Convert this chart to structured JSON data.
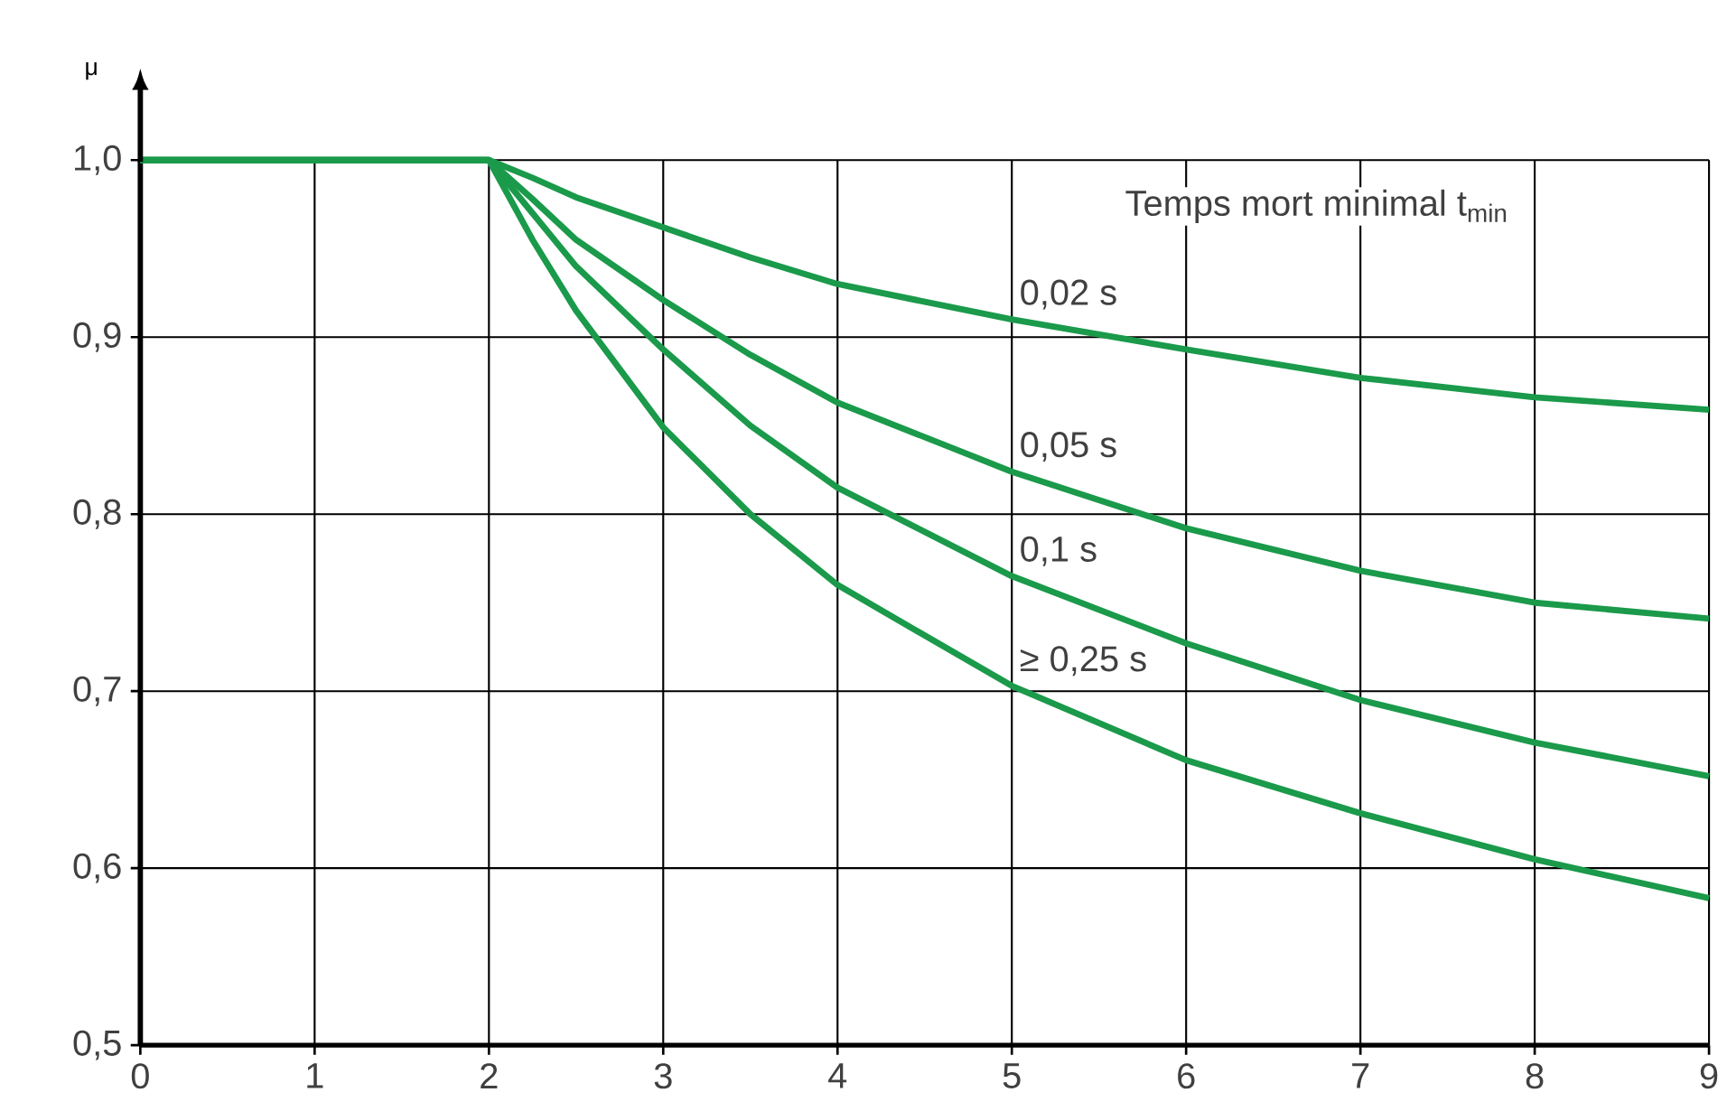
{
  "chart_data": {
    "type": "line",
    "ylabel": "μ",
    "annotations": [
      "Temps mort minimal t$_{min}$"
    ],
    "x": [
      0,
      2,
      2.25,
      2.5,
      3,
      3.5,
      4,
      5,
      6,
      7,
      8,
      9
    ],
    "series": [
      {
        "name": "0,02 s",
        "color": "#1a9a4a",
        "values": [
          1.0,
          1.0,
          0.99,
          0.979,
          0.962,
          0.945,
          0.93,
          0.91,
          0.893,
          0.877,
          0.866,
          0.859
        ]
      },
      {
        "name": "0,05 s",
        "color": "#1a9a4a",
        "values": [
          1.0,
          1.0,
          0.978,
          0.955,
          0.921,
          0.89,
          0.863,
          0.824,
          0.792,
          0.768,
          0.75,
          0.741
        ]
      },
      {
        "name": "0,1 s",
        "color": "#1a9a4a",
        "values": [
          1.0,
          1.0,
          0.97,
          0.94,
          0.893,
          0.85,
          0.815,
          0.765,
          0.727,
          0.695,
          0.671,
          0.652
        ]
      },
      {
        "name": "≥ 0,25 s",
        "color": "#1a9a4a",
        "values": [
          1.0,
          1.0,
          0.955,
          0.915,
          0.849,
          0.8,
          0.76,
          0.703,
          0.661,
          0.631,
          0.605,
          0.583
        ]
      }
    ],
    "xlim": [
      0,
      9
    ],
    "ylim": [
      0.5,
      1.0
    ],
    "xticks": [
      0,
      1,
      2,
      3,
      4,
      5,
      6,
      7,
      8,
      9
    ],
    "yticks": [
      {
        "value": 0.5,
        "label": "0,5"
      },
      {
        "value": 0.6,
        "label": "0,6"
      },
      {
        "value": 0.7,
        "label": "0,7"
      },
      {
        "value": 0.8,
        "label": "0,8"
      },
      {
        "value": 0.9,
        "label": "0,9"
      },
      {
        "value": 1.0,
        "label": "1,0"
      }
    ],
    "grid": true,
    "legend": false,
    "marker": "none",
    "line_style": "solid"
  }
}
